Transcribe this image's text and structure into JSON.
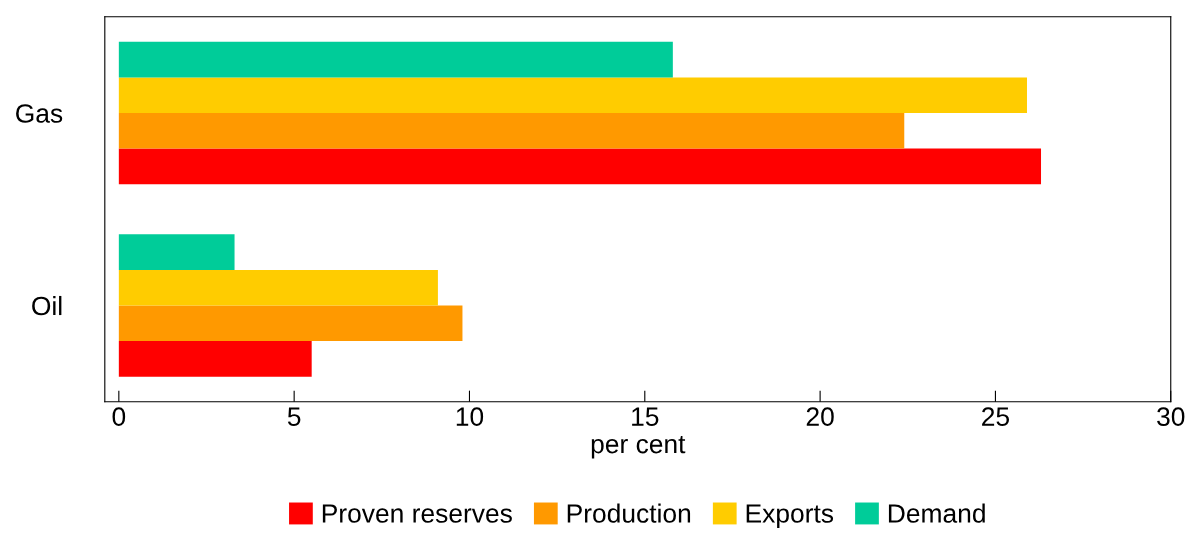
{
  "chart_data": {
    "type": "bar",
    "orientation": "horizontal",
    "xlabel": "per cent",
    "categories": [
      "Gas",
      "Oil"
    ],
    "series": [
      {
        "name": "Proven reserves",
        "color": "#ff0000",
        "values": [
          26.3,
          5.5
        ]
      },
      {
        "name": "Production",
        "color": "#ff9900",
        "values": [
          22.4,
          9.8
        ]
      },
      {
        "name": "Exports",
        "color": "#ffcc00",
        "values": [
          25.9,
          9.1
        ]
      },
      {
        "name": "Demand",
        "color": "#00cc99",
        "values": [
          15.8,
          3.3
        ]
      }
    ],
    "xlim": [
      -0.4,
      30
    ],
    "xticks": [
      0,
      5,
      10,
      15,
      20,
      25,
      30
    ],
    "grid": false,
    "legend": "bottom"
  }
}
